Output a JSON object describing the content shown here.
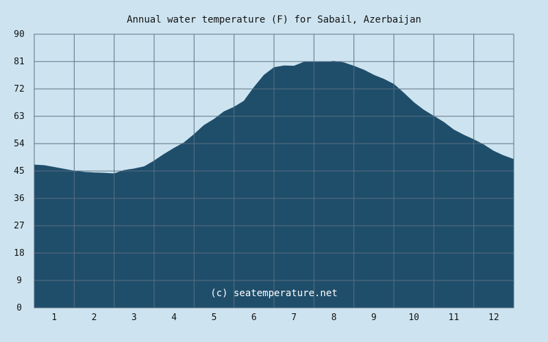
{
  "chart_data": {
    "type": "area",
    "title": "Annual water temperature (F) for Sabail, Azerbaijan",
    "xlabel": "",
    "ylabel": "",
    "xlim": [
      0.5,
      12.5
    ],
    "ylim": [
      0,
      90
    ],
    "y_ticks": [
      "0",
      "9",
      "18",
      "27",
      "36",
      "45",
      "54",
      "63",
      "72",
      "81",
      "90"
    ],
    "x_ticks": [
      "1",
      "2",
      "3",
      "4",
      "5",
      "6",
      "7",
      "8",
      "9",
      "10",
      "11",
      "12"
    ],
    "grid": true,
    "colors": {
      "background": "#cde4f0",
      "area": "#1f4e6b",
      "grid": "#5a6f80"
    },
    "watermark": "(c) seatemperature.net",
    "series": [
      {
        "x": [
          0.5,
          0.75,
          1.0,
          1.25,
          1.5,
          1.75,
          2.0,
          2.25,
          2.5,
          2.75,
          3.0,
          3.25,
          3.5,
          3.75,
          4.0,
          4.25,
          4.5,
          4.75,
          5.0,
          5.25,
          5.5,
          5.75,
          6.0,
          6.25,
          6.5,
          6.75,
          7.0,
          7.25,
          7.5,
          7.75,
          8.0,
          8.25,
          8.5,
          8.75,
          9.0,
          9.25,
          9.5,
          9.75,
          10.0,
          10.25,
          10.5,
          10.75,
          11.0,
          11.25,
          11.5,
          11.75,
          12.0,
          12.25,
          12.5
        ],
        "values": [
          47.0,
          46.8,
          46.2,
          45.6,
          45.0,
          44.6,
          44.4,
          44.3,
          44.1,
          45.2,
          45.7,
          46.4,
          48.3,
          50.5,
          52.5,
          54.3,
          57.0,
          60.0,
          62.0,
          64.5,
          66.0,
          68.0,
          72.5,
          76.5,
          79.0,
          79.6,
          79.5,
          80.8,
          80.8,
          80.8,
          81.1,
          80.6,
          79.5,
          78.2,
          76.5,
          75.2,
          73.5,
          70.6,
          67.5,
          65.0,
          63.0,
          61.0,
          58.5,
          56.8,
          55.3,
          53.6,
          51.5,
          50.0,
          48.8
        ]
      }
    ]
  }
}
